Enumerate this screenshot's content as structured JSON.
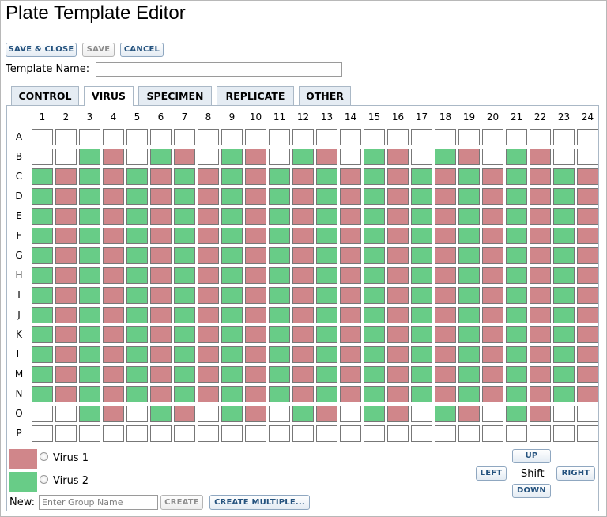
{
  "window": {
    "title": "Plate Template Editor"
  },
  "toolbar": {
    "save_close_label": "SAVE & CLOSE",
    "save_label": "SAVE",
    "cancel_label": "CANCEL"
  },
  "template": {
    "name_label": "Template Name:",
    "name_value": ""
  },
  "tabs": [
    {
      "label": "CONTROL",
      "active": false
    },
    {
      "label": "VIRUS",
      "active": true
    },
    {
      "label": "SPECIMEN",
      "active": false
    },
    {
      "label": "REPLICATE",
      "active": false
    },
    {
      "label": "OTHER",
      "active": false
    }
  ],
  "plate": {
    "columns": [
      "1",
      "2",
      "3",
      "4",
      "5",
      "6",
      "7",
      "8",
      "9",
      "10",
      "11",
      "12",
      "13",
      "14",
      "15",
      "16",
      "17",
      "18",
      "19",
      "20",
      "21",
      "22",
      "23",
      "24"
    ],
    "rows": [
      "A",
      "B",
      "C",
      "D",
      "E",
      "F",
      "G",
      "H",
      "I",
      "J",
      "K",
      "L",
      "M",
      "N",
      "O",
      "P"
    ],
    "cells": [
      "........................",
      "..gr.gr.gr.gr.gr.gr.gr..",
      "grgrgrgrgrgrgrgrgrgrgrgr",
      "grgrgrgrgrgrgrgrgrgrgrgr",
      "grgrgrgrgrgrgrgrgrgrgrgr",
      "grgrgrgrgrgrgrgrgrgrgrgr",
      "grgrgrgrgrgrgrgrgrgrgrgr",
      "grgrgrgrgrgrgrgrgrgrgrgr",
      "grgrgrgrgrgrgrgrgrgrgrgr",
      "grgrgrgrgrgrgrgrgrgrgrgr",
      "grgrgrgrgrgrgrgrgrgrgrgr",
      "grgrgrgrgrgrgrgrgrgrgrgr",
      "grgrgrgrgrgrgrgrgrgrgrgr",
      "grgrgrgrgrgrgrgrgrgrgrgr",
      "..gr.gr.gr.gr.gr.gr.gr..",
      "........................"
    ]
  },
  "groups": [
    {
      "name": "Virus 1",
      "color": "#d0868a",
      "selected": false
    },
    {
      "name": "Virus 2",
      "color": "#68cc87",
      "selected": false
    }
  ],
  "colors": {
    "red": "#d0868a",
    "green": "#68cc87",
    "empty": "#ffffff"
  },
  "new_group": {
    "label": "New:",
    "placeholder": "Enter Group Name",
    "create_label": "CREATE",
    "create_multiple_label": "CREATE MULTIPLE..."
  },
  "shift": {
    "label": "Shift",
    "up_label": "UP",
    "down_label": "DOWN",
    "left_label": "LEFT",
    "right_label": "RIGHT"
  }
}
